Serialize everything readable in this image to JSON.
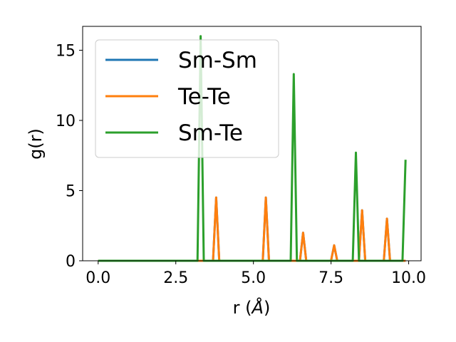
{
  "chart_data": {
    "type": "line",
    "title": "",
    "xlabel_prefix": "r (",
    "xlabel_unit": "Å",
    "xlabel_suffix": ")",
    "ylabel": "g(r)",
    "xlim": [
      -0.5,
      10.4
    ],
    "ylim": [
      0,
      16.7
    ],
    "xticks": [
      0.0,
      2.5,
      5.0,
      7.5,
      10.0
    ],
    "xtick_labels": [
      "0.0",
      "2.5",
      "5.0",
      "7.5",
      "10.0"
    ],
    "yticks": [
      0,
      5,
      10,
      15
    ],
    "ytick_labels": [
      "0",
      "5",
      "10",
      "15"
    ],
    "grid": false,
    "legend_position": "upper-left",
    "series": [
      {
        "name": "Sm-Sm",
        "color": "#1f77b4",
        "x": [
          0.0,
          3.7,
          3.8,
          3.9,
          5.3,
          5.4,
          5.5,
          6.5,
          6.6,
          6.7,
          7.5,
          7.6,
          7.7,
          8.4,
          8.5,
          8.6,
          9.2,
          9.3,
          9.4,
          9.9
        ],
        "y": [
          0,
          0,
          4.5,
          0,
          0,
          4.5,
          0,
          0,
          2.0,
          0,
          0,
          1.1,
          0,
          0,
          3.6,
          0,
          0,
          3.0,
          0,
          0
        ]
      },
      {
        "name": "Te-Te",
        "color": "#ff7f0e",
        "x": [
          0.0,
          3.7,
          3.8,
          3.9,
          5.3,
          5.4,
          5.5,
          6.5,
          6.6,
          6.7,
          7.5,
          7.6,
          7.7,
          8.4,
          8.5,
          8.6,
          9.2,
          9.3,
          9.4,
          9.9
        ],
        "y": [
          0,
          0,
          4.5,
          0,
          0,
          4.5,
          0,
          0,
          2.0,
          0,
          0,
          1.1,
          0,
          0,
          3.6,
          0,
          0,
          3.0,
          0,
          0
        ]
      },
      {
        "name": "Sm-Te",
        "color": "#2ca02c",
        "x": [
          0.0,
          3.2,
          3.3,
          3.4,
          6.2,
          6.3,
          6.4,
          8.2,
          8.3,
          8.4,
          9.8,
          9.9
        ],
        "y": [
          0,
          0,
          16.0,
          0,
          0,
          13.3,
          0,
          0,
          7.7,
          0,
          0,
          7.2
        ]
      }
    ]
  }
}
